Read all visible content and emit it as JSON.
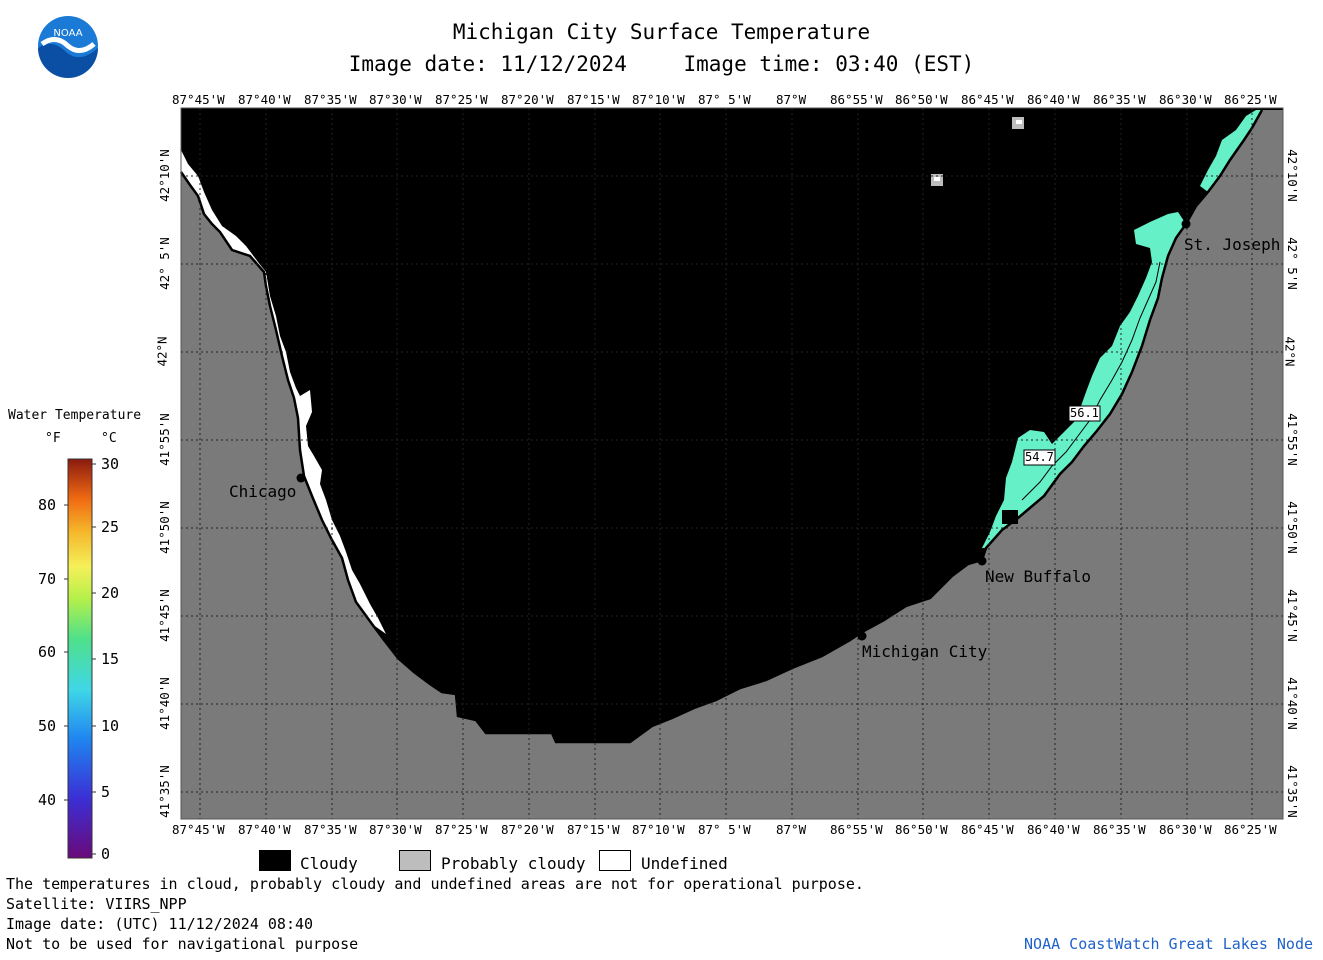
{
  "header": {
    "title": "Michigan City Surface Temperature",
    "image_date": "Image date: 11/12/2024",
    "image_time": "Image time: 03:40 (EST)"
  },
  "logo": {
    "text": "NOAA"
  },
  "map": {
    "lon_labels": [
      "87°45'W",
      "87°40'W",
      "87°35'W",
      "87°30'W",
      "87°25'W",
      "87°20'W",
      "87°15'W",
      "87°10'W",
      "87° 5'W",
      "87°W",
      "86°55'W",
      "86°50'W",
      "86°45'W",
      "86°40'W",
      "86°35'W",
      "86°30'W",
      "86°25'W"
    ],
    "lat_labels": [
      "42°10'N",
      "42° 5'N",
      "42°N",
      "41°55'N",
      "41°50'N",
      "41°45'N",
      "41°40'N",
      "41°35'N"
    ],
    "places": {
      "chicago": "Chicago",
      "michigan_city": "Michigan City",
      "new_buffalo": "New Buffalo",
      "st_joseph": "St. Joseph"
    },
    "temp_labels": [
      "56.1",
      "54.7"
    ],
    "colors": {
      "cloudy": "#000000",
      "land": "#7a7a7a",
      "undefined": "#ffffff",
      "water_warm": "#7af2c2",
      "water_cool": "#5ff0d8"
    }
  },
  "legend": {
    "title": "Water Temperature",
    "unit_f": "°F",
    "unit_c": "°C",
    "f_ticks": [
      "80",
      "70",
      "60",
      "50",
      "40"
    ],
    "c_ticks": [
      "30",
      "25",
      "20",
      "15",
      "10",
      "5",
      "0"
    ]
  },
  "key": {
    "cloudy": "Cloudy",
    "probably_cloudy": "Probably cloudy",
    "undefined": "Undefined"
  },
  "footer": {
    "note": "The temperatures in cloud, probably cloudy and undefined areas are not for operational purpose.",
    "satellite": "Satellite: VIIRS_NPP",
    "utc_date": "Image date: (UTC) 11/12/2024  08:40",
    "nav_warning": "Not to be used for navigational purpose",
    "credit": "NOAA CoastWatch Great Lakes Node"
  }
}
